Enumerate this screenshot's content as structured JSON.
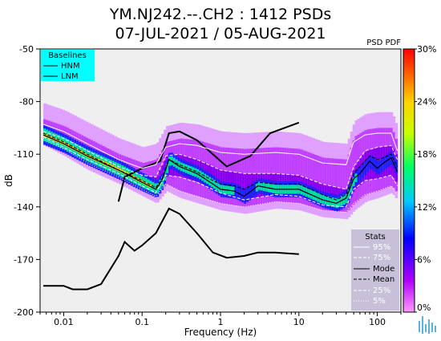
{
  "title_line1": "YM.NJ242.--.CH2 : 1412 PSDs",
  "title_line2": "07-JUL-2021 / 05-AUG-2021",
  "pdf_label": "PSD PDF",
  "baselines_legend": {
    "title": "Baselines",
    "items": [
      "HNM",
      "LNM"
    ]
  },
  "stats_legend": {
    "title": "Stats",
    "items": [
      "95%",
      "75%",
      "Mode",
      "Mean",
      "25%",
      "5%"
    ]
  },
  "colors": {
    "plot_bg": "#efefef",
    "baselines_box": "#00ffff",
    "stats_box": "#c8c0d8",
    "hnm_lnm": "#000000",
    "mode_line": "#000000",
    "percentile_line": "#ffffff"
  },
  "colorbar": {
    "ticks": [
      "30%",
      "24%",
      "18%",
      "12%",
      "6%",
      "0%"
    ],
    "range": [
      0,
      30
    ]
  },
  "chart_data": {
    "type": "heatmap",
    "xlabel": "Frequency (Hz)",
    "ylabel": "dB",
    "xscale": "log",
    "xlim": [
      0.005,
      200
    ],
    "ylim": [
      -200,
      -50
    ],
    "x_ticks": [
      "0.01",
      "0.1",
      "1",
      "10",
      "100"
    ],
    "y_ticks": [
      "-50",
      "-80",
      "-110",
      "-140",
      "-170",
      "-200"
    ],
    "series": [
      {
        "name": "HNM",
        "x": [
          0.05,
          0.06,
          0.1,
          0.17,
          0.22,
          0.3,
          0.5,
          0.8,
          1.2,
          2.4,
          4.3,
          10
        ],
        "y": [
          -137,
          -123,
          -118,
          -114,
          -98,
          -97,
          -102,
          -110,
          -117,
          -111,
          -98,
          -92
        ]
      },
      {
        "name": "LNM",
        "x": [
          0.0055,
          0.01,
          0.013,
          0.02,
          0.03,
          0.05,
          0.06,
          0.08,
          0.1,
          0.15,
          0.22,
          0.3,
          0.5,
          0.8,
          1.2,
          2,
          3,
          5,
          10
        ],
        "y": [
          -185,
          -185,
          -187,
          -187,
          -184,
          -168,
          -160,
          -165,
          -162,
          -155,
          -141,
          -144,
          -155,
          -166,
          -169,
          -168,
          -166,
          -166,
          -167
        ]
      },
      {
        "name": "Mode",
        "x": [
          0.0055,
          0.01,
          0.02,
          0.05,
          0.1,
          0.15,
          0.18,
          0.22,
          0.3,
          0.5,
          0.8,
          1,
          1.5,
          2,
          3,
          5,
          10,
          20,
          30,
          40,
          50,
          60,
          80,
          100,
          120,
          150,
          180
        ],
        "y": [
          -99,
          -104,
          -111,
          -119,
          -126,
          -130,
          -125,
          -113,
          -117,
          -121,
          -127,
          -130,
          -131,
          -134,
          -128,
          -130,
          -130,
          -136,
          -138,
          -135,
          -124,
          -121,
          -114,
          -118,
          -115,
          -112,
          -120
        ]
      },
      {
        "name": "Mean",
        "x": [
          0.0055,
          0.01,
          0.02,
          0.05,
          0.1,
          0.15,
          0.18,
          0.22,
          0.3,
          0.5,
          0.8,
          1,
          1.5,
          2,
          3,
          5,
          10,
          20,
          30,
          40,
          50,
          60,
          80,
          100,
          120,
          150,
          180
        ],
        "y": [
          -98,
          -103,
          -110,
          -119,
          -125,
          -129,
          -124,
          -113,
          -116,
          -120,
          -125,
          -127,
          -128,
          -130,
          -126,
          -127,
          -127,
          -133,
          -136,
          -133,
          -121,
          -117,
          -111,
          -113,
          -112,
          -110,
          -117
        ]
      },
      {
        "name": "95%",
        "x": [
          0.0055,
          0.01,
          0.02,
          0.05,
          0.1,
          0.15,
          0.2,
          0.3,
          0.5,
          1,
          2,
          5,
          10,
          20,
          40,
          50,
          70,
          100,
          150,
          180
        ],
        "y": [
          -93,
          -97,
          -104,
          -113,
          -118,
          -116,
          -106,
          -104,
          -105,
          -109,
          -110,
          -109,
          -110,
          -115,
          -116,
          -103,
          -99,
          -98,
          -98,
          -108
        ]
      },
      {
        "name": "75%",
        "x": [
          0.0055,
          0.01,
          0.02,
          0.05,
          0.1,
          0.15,
          0.2,
          0.3,
          0.5,
          1,
          2,
          5,
          10,
          20,
          40,
          50,
          70,
          100,
          150,
          180
        ],
        "y": [
          -97,
          -101,
          -108,
          -117,
          -122,
          -123,
          -111,
          -110,
          -113,
          -119,
          -121,
          -121,
          -122,
          -127,
          -130,
          -117,
          -108,
          -106,
          -105,
          -113
        ]
      },
      {
        "name": "25%",
        "x": [
          0.0055,
          0.01,
          0.02,
          0.05,
          0.1,
          0.15,
          0.2,
          0.3,
          0.5,
          1,
          2,
          5,
          10,
          20,
          40,
          50,
          70,
          100,
          150,
          180
        ],
        "y": [
          -100,
          -106,
          -113,
          -121,
          -128,
          -132,
          -122,
          -123,
          -126,
          -132,
          -136,
          -133,
          -134,
          -139,
          -140,
          -130,
          -125,
          -124,
          -122,
          -128
        ]
      },
      {
        "name": "5%",
        "x": [
          0.0055,
          0.01,
          0.02,
          0.05,
          0.1,
          0.15,
          0.2,
          0.3,
          0.5,
          1,
          2,
          5,
          10,
          20,
          40,
          50,
          70,
          100,
          150,
          180
        ],
        "y": [
          -101,
          -107,
          -115,
          -123,
          -130,
          -134,
          -127,
          -131,
          -134,
          -138,
          -140,
          -137,
          -138,
          -142,
          -143,
          -138,
          -133,
          -131,
          -128,
          -133
        ]
      }
    ]
  }
}
